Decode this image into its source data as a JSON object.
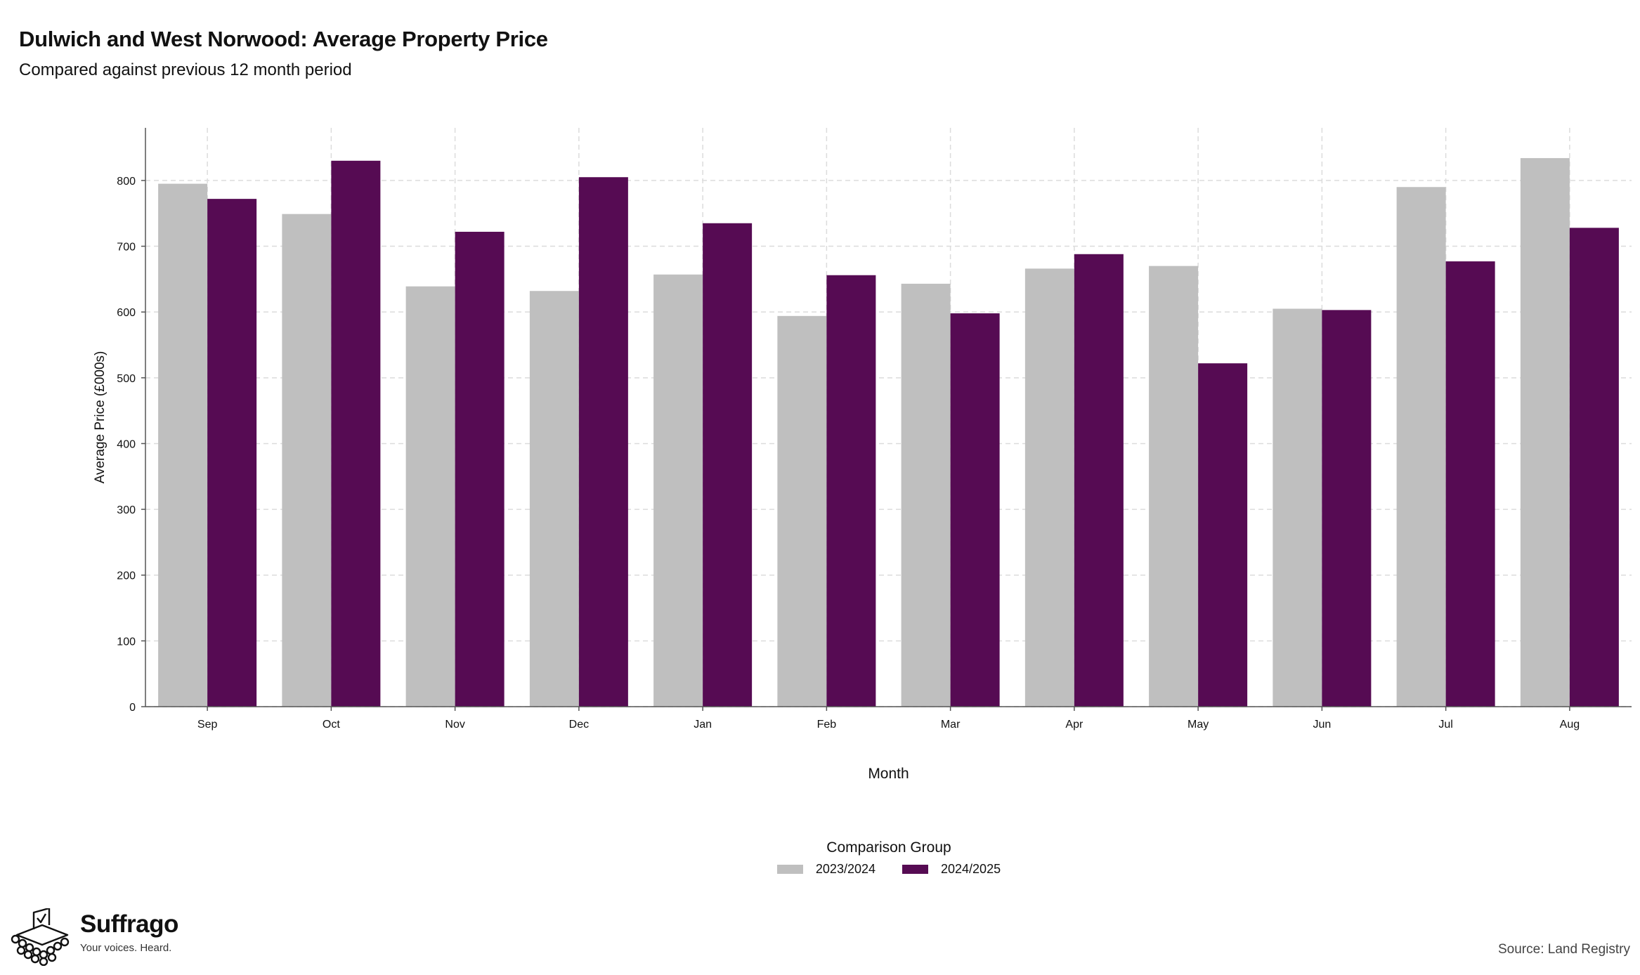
{
  "title": "Dulwich and West Norwood: Average Property Price",
  "subtitle": "Compared against previous 12 month period",
  "source": "Source: Land Registry",
  "logo": {
    "name": "Suffrago",
    "tagline": "Your voices. Heard.",
    "icon": "ballot-box-crowd-icon"
  },
  "legend": {
    "title": "Comparison Group",
    "placement": "bottom-center"
  },
  "colors": {
    "series_2023_2024": "#bfbfbf",
    "series_2024_2025": "#560b53",
    "grid": "#dcdcdc",
    "axis": "#555555"
  },
  "chart_data": {
    "type": "bar",
    "xlabel": "Month",
    "ylabel": "Average Price (£000s)",
    "categories": [
      "Sep",
      "Oct",
      "Nov",
      "Dec",
      "Jan",
      "Feb",
      "Mar",
      "Apr",
      "May",
      "Jun",
      "Jul",
      "Aug"
    ],
    "ylim": [
      0,
      880
    ],
    "yticks": [
      0,
      100,
      200,
      300,
      400,
      500,
      600,
      700,
      800
    ],
    "grid": true,
    "series": [
      {
        "name": "2023/2024",
        "color": "#bfbfbf",
        "values": [
          795,
          749,
          639,
          632,
          657,
          594,
          643,
          666,
          670,
          605,
          790,
          834
        ]
      },
      {
        "name": "2024/2025",
        "color": "#560b53",
        "values": [
          772,
          830,
          722,
          805,
          735,
          656,
          598,
          688,
          522,
          603,
          677,
          728
        ]
      }
    ]
  }
}
